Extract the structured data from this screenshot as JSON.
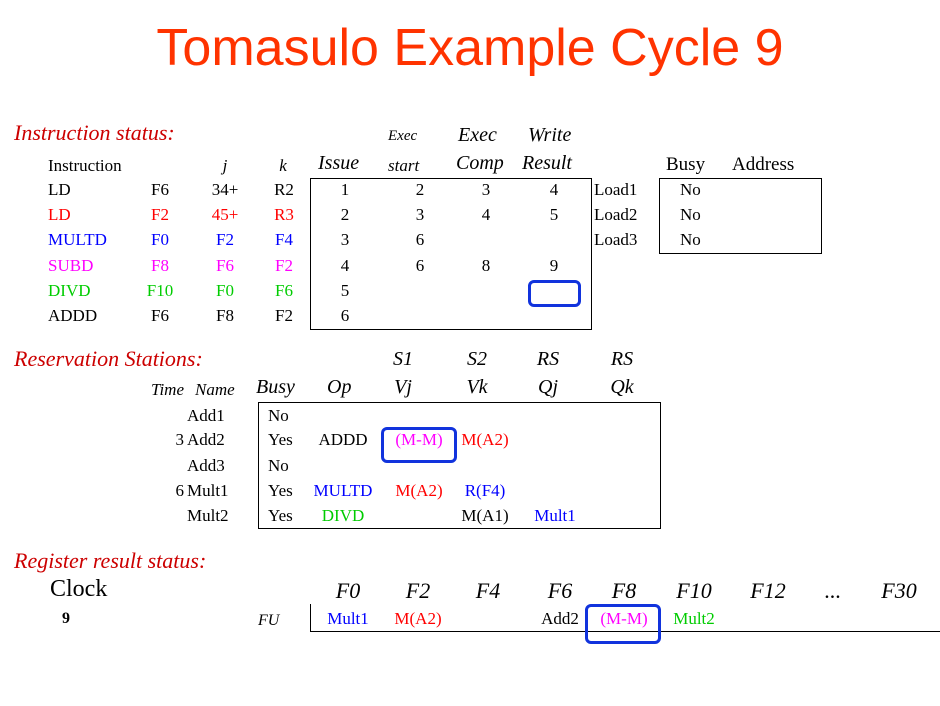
{
  "title": "Tomasulo Example Cycle 9",
  "instruction_status": {
    "label": "Instruction status:",
    "headers": {
      "instruction": "Instruction",
      "j": "j",
      "k": "k",
      "issue": "Issue",
      "exec_top": "Exec",
      "exec_start": "start",
      "exec_comp_top": "Exec",
      "exec_comp": "Comp",
      "write_top": "Write",
      "write_result": "Result"
    },
    "rows": [
      {
        "op": "LD",
        "dest": "F6",
        "j": "34+",
        "k": "R2",
        "issue": "1",
        "start": "2",
        "comp": "3",
        "write": "4",
        "color": "#000000"
      },
      {
        "op": "LD",
        "dest": "F2",
        "j": "45+",
        "k": "R3",
        "issue": "2",
        "start": "3",
        "comp": "4",
        "write": "5",
        "color": "#ff0000"
      },
      {
        "op": "MULTD",
        "dest": "F0",
        "j": "F2",
        "k": "F4",
        "issue": "3",
        "start": "6",
        "comp": "",
        "write": "",
        "color": "#0000ff"
      },
      {
        "op": "SUBD",
        "dest": "F8",
        "j": "F6",
        "k": "F2",
        "issue": "4",
        "start": "6",
        "comp": "8",
        "write": "9",
        "color": "#ff00ff"
      },
      {
        "op": "DIVD",
        "dest": "F10",
        "j": "F0",
        "k": "F6",
        "issue": "5",
        "start": "",
        "comp": "",
        "write": "",
        "color": "#00cc00"
      },
      {
        "op": "ADDD",
        "dest": "F6",
        "j": "F8",
        "k": "F2",
        "issue": "6",
        "start": "",
        "comp": "",
        "write": "",
        "color": "#000000"
      }
    ]
  },
  "load_buffers": {
    "headers": {
      "busy": "Busy",
      "address": "Address"
    },
    "rows": [
      {
        "name": "Load1",
        "busy": "No",
        "address": ""
      },
      {
        "name": "Load2",
        "busy": "No",
        "address": ""
      },
      {
        "name": "Load3",
        "busy": "No",
        "address": ""
      }
    ]
  },
  "reservation_stations": {
    "label": "Reservation Stations:",
    "headers": {
      "time": "Time",
      "name": "Name",
      "busy": "Busy",
      "op": "Op",
      "s1": "S1",
      "vj": "Vj",
      "s2": "S2",
      "vk": "Vk",
      "rs1": "RS",
      "qj": "Qj",
      "rs2": "RS",
      "qk": "Qk"
    },
    "rows": [
      {
        "time": "",
        "name": "Add1",
        "busy": "No",
        "op": "",
        "vj": "",
        "vk": "",
        "qj": "",
        "qk": ""
      },
      {
        "time": "3",
        "name": "Add2",
        "busy": "Yes",
        "op": "ADDD",
        "vj": "(M-M)",
        "vk": "M(A2)",
        "qj": "",
        "qk": ""
      },
      {
        "time": "",
        "name": "Add3",
        "busy": "No",
        "op": "",
        "vj": "",
        "vk": "",
        "qj": "",
        "qk": ""
      },
      {
        "time": "6",
        "name": "Mult1",
        "busy": "Yes",
        "op": "MULTD",
        "vj": "M(A2)",
        "vk": "R(F4)",
        "qj": "",
        "qk": ""
      },
      {
        "time": "",
        "name": "Mult2",
        "busy": "Yes",
        "op": "DIVD",
        "vj": "",
        "vk": "M(A1)",
        "qj": "Mult1",
        "qk": ""
      }
    ]
  },
  "register_status": {
    "label": "Register result status:",
    "clock_label": "Clock",
    "clock_value": "9",
    "fu_label": "FU",
    "registers": [
      "F0",
      "F2",
      "F4",
      "F6",
      "F8",
      "F10",
      "F12",
      "...",
      "F30"
    ],
    "values": [
      "Mult1",
      "M(A2)",
      "",
      "Add2",
      "(M-M)",
      "Mult2",
      "",
      "",
      ""
    ]
  },
  "colors": {
    "title": "#ff3300",
    "section": "#cc0000",
    "highlight": "#1133dd",
    "red": "#ff0000",
    "blue": "#0000ff",
    "magenta": "#ff00ff",
    "green": "#00cc00"
  }
}
